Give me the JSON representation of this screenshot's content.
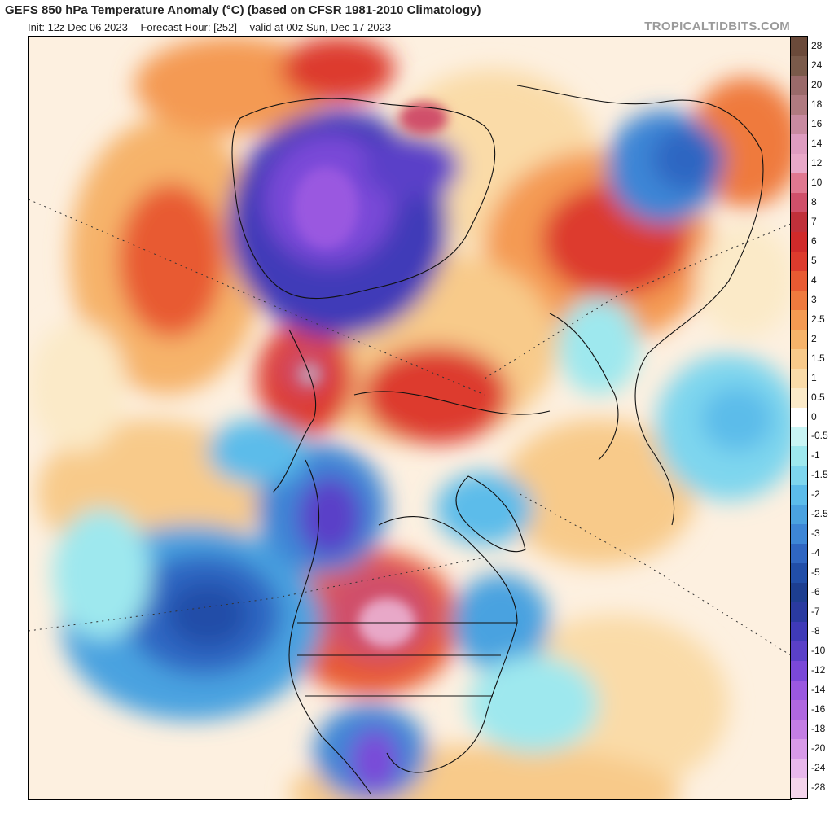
{
  "header": {
    "title": "GEFS 850 hPa Temperature Anomaly (°C) (based on CFSR 1981-2010 Climatology)",
    "init": "Init: 12z Dec 06 2023",
    "forecast_hour": "Forecast Hour: [252]",
    "valid": "valid at 00z Sun, Dec 17 2023",
    "brand": "TROPICALTIDBITS.COM"
  },
  "colorbar": {
    "levels": [
      "28",
      "24",
      "20",
      "18",
      "16",
      "14",
      "12",
      "10",
      "8",
      "7",
      "6",
      "5",
      "4",
      "3",
      "2.5",
      "2",
      "1.5",
      "1",
      "0.5",
      "0",
      "-0.5",
      "-1",
      "-1.5",
      "-2",
      "-2.5",
      "-3",
      "-4",
      "-5",
      "-6",
      "-7",
      "-8",
      "-10",
      "-12",
      "-14",
      "-16",
      "-18",
      "-20",
      "-24",
      "-28"
    ],
    "colors": [
      "#6b4a3a",
      "#7a5a4a",
      "#9a6a6a",
      "#b07a80",
      "#c88aa0",
      "#de9cc0",
      "#e8a8c8",
      "#e07890",
      "#d0506a",
      "#c0303a",
      "#d02a2a",
      "#dd3b2d",
      "#e85a32",
      "#ef7a3e",
      "#f49a52",
      "#f6b36a",
      "#f8ca8a",
      "#fadba8",
      "#fbeac8",
      "#ffffff",
      "#c8f4f4",
      "#9ee8ee",
      "#7ed6ee",
      "#5cbcea",
      "#4aa2e0",
      "#3d86d6",
      "#2f66c2",
      "#214ea8",
      "#1d3e90",
      "#2a3aa0",
      "#3f3ab8",
      "#5a40c8",
      "#7a48d8",
      "#9a58e0",
      "#b068e0",
      "#c47ee4",
      "#d89ae8",
      "#e8b8ec",
      "#f4d4ec"
    ]
  },
  "map": {
    "palette": {
      "ocean_neutral": "#fdf2e6",
      "warm": "#f6b36a",
      "hot": "#dd3b2d",
      "very_hot": "#d0506a",
      "cool": "#7ed6ee",
      "cold": "#3d86d6",
      "very_cold": "#7a48d8",
      "border": "#111111"
    }
  }
}
